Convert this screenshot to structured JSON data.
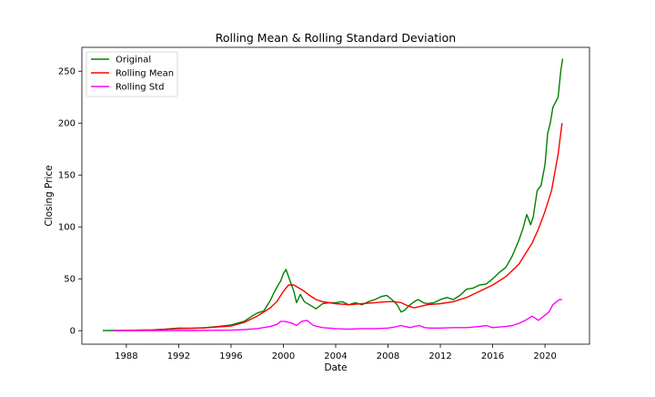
{
  "chart_data": {
    "type": "line",
    "title": "Rolling Mean & Rolling Standard Deviation",
    "xlabel": "Date",
    "ylabel": "Closing Price",
    "xlim": [
      1984.6,
      2023.4
    ],
    "ylim": [
      -13,
      273
    ],
    "x_ticks": [
      1988,
      1992,
      1996,
      2000,
      2004,
      2008,
      2012,
      2016,
      2020
    ],
    "y_ticks": [
      0,
      50,
      100,
      150,
      200,
      250
    ],
    "grid": false,
    "legend_position": "upper-left",
    "series": [
      {
        "name": "Original",
        "color": "#008000",
        "x": [
          1986.2,
          1987,
          1988,
          1989,
          1990,
          1991,
          1992,
          1993,
          1994,
          1995,
          1996,
          1997,
          1997.6,
          1998,
          1998.5,
          1999,
          1999.3,
          1999.6,
          1999.8,
          2000,
          2000.2,
          2000.4,
          2000.6,
          2000.8,
          2001,
          2001.3,
          2001.6,
          2002,
          2002.5,
          2003,
          2003.5,
          2004,
          2004.5,
          2005,
          2005.5,
          2006,
          2006.5,
          2007,
          2007.5,
          2007.9,
          2008.3,
          2008.7,
          2009,
          2009.3,
          2009.6,
          2010,
          2010.3,
          2010.7,
          2011,
          2011.5,
          2012,
          2012.5,
          2013,
          2013.5,
          2014,
          2014.5,
          2015,
          2015.5,
          2016,
          2016.5,
          2017,
          2017.5,
          2018,
          2018.3,
          2018.6,
          2018.9,
          2019.1,
          2019.4,
          2019.7,
          2020,
          2020.2,
          2020.4,
          2020.6,
          2020.8,
          2021,
          2021.2,
          2021.35
        ],
        "y": [
          0.1,
          0.15,
          0.3,
          0.5,
          0.8,
          1.5,
          2.5,
          2.3,
          2.8,
          4,
          5.5,
          9,
          14,
          17,
          19,
          29,
          37,
          44,
          48,
          55,
          59,
          52,
          45,
          38,
          27,
          35,
          28,
          25,
          21,
          26,
          27,
          27,
          28,
          25,
          27,
          25,
          28,
          30,
          33,
          34,
          30,
          25,
          18,
          20,
          24,
          28,
          30,
          27,
          26,
          27,
          30,
          32,
          30,
          34,
          40,
          41,
          44,
          45,
          50,
          56,
          61,
          72,
          87,
          98,
          112,
          102,
          110,
          135,
          140,
          160,
          190,
          200,
          215,
          220,
          225,
          250,
          262
        ]
      },
      {
        "name": "Rolling Mean",
        "color": "#ff0000",
        "x": [
          1987,
          1988,
          1990,
          1992,
          1994,
          1996,
          1997,
          1998,
          1999,
          1999.5,
          2000,
          2000.4,
          2000.8,
          2001.2,
          2001.6,
          2002,
          2002.5,
          2003,
          2004,
          2005,
          2006,
          2007,
          2008,
          2008.5,
          2009,
          2009.5,
          2010,
          2011,
          2012,
          2013,
          2014,
          2015,
          2016,
          2017,
          2018,
          2019,
          2019.5,
          2020,
          2020.5,
          2021,
          2021.3
        ],
        "y": [
          0.1,
          0.3,
          0.8,
          2,
          2.8,
          4.5,
          8,
          14,
          22,
          28,
          38,
          44,
          44,
          41,
          38,
          34,
          30,
          28,
          26,
          25,
          26,
          27,
          28,
          28,
          27,
          24,
          22,
          25,
          26,
          28,
          32,
          38,
          44,
          52,
          64,
          84,
          98,
          115,
          135,
          170,
          200
        ]
      },
      {
        "name": "Rolling Std",
        "color": "#ff00ff",
        "x": [
          1987,
          1990,
          1993,
          1996,
          1997,
          1998,
          1999,
          1999.5,
          1999.8,
          2000.1,
          2000.4,
          2000.7,
          2001,
          2001.4,
          2001.8,
          2002.3,
          2003,
          2004,
          2005,
          2006,
          2007,
          2008,
          2008.5,
          2009,
          2009.3,
          2009.7,
          2010,
          2010.4,
          2010.8,
          2011.2,
          2012,
          2013,
          2014,
          2015,
          2015.5,
          2016,
          2016.5,
          2017,
          2017.5,
          2018,
          2018.5,
          2019,
          2019.5,
          2020,
          2020.3,
          2020.6,
          2020.9,
          2021.1,
          2021.3
        ],
        "y": [
          0,
          0.1,
          0.2,
          0.5,
          1,
          2,
          4,
          6,
          9,
          9,
          8,
          7,
          5,
          9,
          10,
          5,
          3,
          2,
          1.5,
          2,
          2,
          2.5,
          3.5,
          5,
          4,
          3,
          4,
          5,
          3,
          2.5,
          2.5,
          3,
          3,
          4,
          5,
          3,
          3.5,
          4,
          5,
          7,
          10,
          14,
          10,
          15,
          18,
          25,
          28,
          30,
          30
        ]
      }
    ]
  }
}
